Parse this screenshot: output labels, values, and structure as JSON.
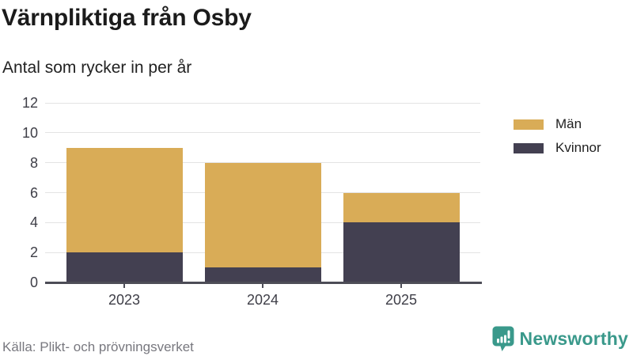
{
  "chart": {
    "title": "Värnpliktiga från Osby",
    "subtitle": "Antal som rycker in per år",
    "source": "Källa: Plikt- och prövningsverket"
  },
  "branding": {
    "name": "Newsworthy",
    "color": "#3a998b"
  },
  "colors": {
    "men": "#d9ac57",
    "women": "#434051",
    "gridline": "#e3e3e3",
    "axis": "#4d4d57"
  },
  "chart_data": {
    "type": "bar",
    "stacked": true,
    "title": "Värnpliktiga från Osby",
    "subtitle": "Antal som rycker in per år",
    "categories": [
      "2023",
      "2024",
      "2025"
    ],
    "series": [
      {
        "name": "Män",
        "color": "#d9ac57",
        "values": [
          7,
          7,
          2
        ]
      },
      {
        "name": "Kvinnor",
        "color": "#434051",
        "values": [
          2,
          1,
          4
        ]
      }
    ],
    "stack_order_bottom_to_top": [
      "Kvinnor",
      "Män"
    ],
    "totals": [
      9,
      8,
      6
    ],
    "xlabel": "",
    "ylabel": "",
    "ylim": [
      0,
      12
    ],
    "yticks": [
      0,
      2,
      4,
      6,
      8,
      10,
      12
    ],
    "grid": true,
    "legend_position": "right"
  }
}
